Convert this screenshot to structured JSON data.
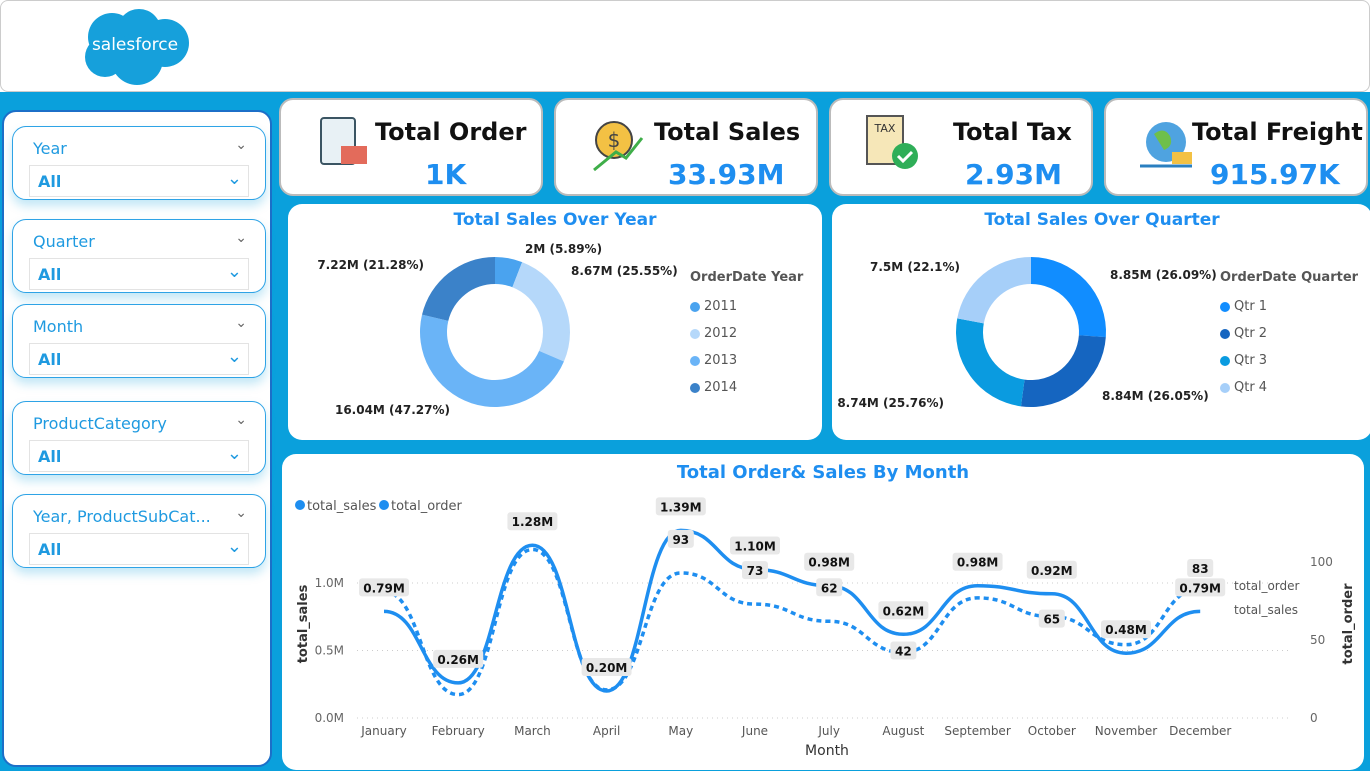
{
  "brand": "salesforce",
  "slicers": [
    {
      "label": "Year",
      "value": "All"
    },
    {
      "label": "Quarter",
      "value": "All"
    },
    {
      "label": "Month",
      "value": "All"
    },
    {
      "label": "ProductCategory",
      "value": "All"
    },
    {
      "label": "Year, ProductSubCat...",
      "value": "All"
    }
  ],
  "kpis": [
    {
      "label": "Total Order",
      "value": "1K",
      "icon": "clipboard-delivery-icon"
    },
    {
      "label": "Total Sales",
      "value": "33.93M",
      "icon": "dollar-growth-icon"
    },
    {
      "label": "Total Tax",
      "value": "2.93M",
      "icon": "tax-document-icon"
    },
    {
      "label": "Total Freight",
      "value": "915.97K",
      "icon": "global-freight-icon"
    }
  ],
  "chart_data": [
    {
      "type": "pie",
      "title": "Total Sales Over Year",
      "legend_title": "OrderDate Year",
      "legend_position": "right",
      "categories": [
        "2011",
        "2012",
        "2013",
        "2014"
      ],
      "values": [
        2,
        8.67,
        16.04,
        7.22
      ],
      "labels": [
        "2M (5.89%)",
        "8.67M (25.55%)",
        "16.04M (47.27%)",
        "7.22M (21.28%)"
      ],
      "colors": [
        "#4aa3ef",
        "#b5d8fa",
        "#6ab4f7",
        "#3b82c9"
      ]
    },
    {
      "type": "pie",
      "title": "Total Sales Over Quarter",
      "legend_title": "OrderDate Quarter",
      "legend_position": "right",
      "categories": [
        "Qtr 1",
        "Qtr 2",
        "Qtr 3",
        "Qtr 4"
      ],
      "values": [
        8.85,
        8.84,
        8.74,
        7.5
      ],
      "labels": [
        "8.85M (26.09%)",
        "8.84M (26.05%)",
        "8.74M (25.76%)",
        "7.5M (22.1%)"
      ],
      "colors": [
        "#118dff",
        "#1565c0",
        "#0a9be0",
        "#a6cff9"
      ]
    },
    {
      "type": "line",
      "title": "Total Order& Sales By Month",
      "xlabel": "Month",
      "ylabel": "total_sales",
      "y2label": "total_order",
      "legend_position": "top-left",
      "categories": [
        "January",
        "February",
        "March",
        "April",
        "May",
        "June",
        "July",
        "August",
        "September",
        "October",
        "November",
        "December"
      ],
      "series": [
        {
          "name": "total_sales",
          "values": [
            0.79,
            0.26,
            1.28,
            0.2,
            1.39,
            1.1,
            0.98,
            0.62,
            0.98,
            0.92,
            0.48,
            0.79
          ],
          "labels": [
            "0.79M",
            "0.26M",
            "1.28M",
            "0.20M",
            "1.39M",
            "1.10M",
            "0.98M",
            "0.62M",
            "0.98M",
            "0.92M",
            "0.48M",
            "0.79M"
          ],
          "color": "#1e8ef0"
        },
        {
          "name": "total_order",
          "values": [
            81,
            15,
            108,
            18,
            93,
            73,
            62,
            42,
            77,
            65,
            47,
            83
          ],
          "labels": [
            null,
            null,
            null,
            null,
            "93",
            "73",
            "62",
            "42",
            null,
            "65",
            null,
            "83"
          ],
          "color": "#1e8ef0"
        }
      ],
      "yticks": [
        "0.0M",
        "0.5M",
        "1.0M"
      ],
      "ylim": [
        0,
        1.5
      ],
      "y2ticks": [
        "0",
        "50",
        "100"
      ],
      "y2lim": [
        0,
        120
      ]
    }
  ]
}
